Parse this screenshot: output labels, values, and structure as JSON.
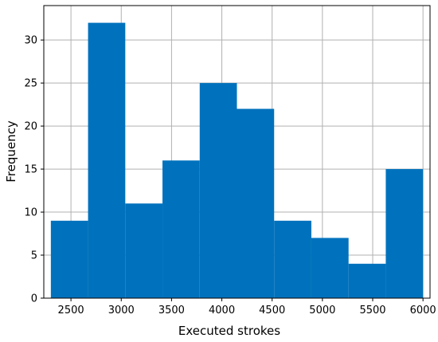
{
  "chart_data": {
    "type": "bar",
    "xlabel": "Executed strokes",
    "ylabel": "Frequency",
    "xlim": [
      2230,
      6070
    ],
    "ylim": [
      0,
      34
    ],
    "grid": true,
    "bar_color": "#0072bd",
    "x_ticks": [
      2500,
      3000,
      3500,
      4000,
      4500,
      5000,
      5500,
      6000
    ],
    "y_ticks": [
      0,
      5,
      10,
      15,
      20,
      25,
      30
    ],
    "bins": [
      {
        "start": 2300,
        "end": 2670,
        "value": 9
      },
      {
        "start": 2670,
        "end": 3040,
        "value": 32
      },
      {
        "start": 3040,
        "end": 3410,
        "value": 11
      },
      {
        "start": 3410,
        "end": 3780,
        "value": 16
      },
      {
        "start": 3780,
        "end": 4150,
        "value": 25
      },
      {
        "start": 4150,
        "end": 4520,
        "value": 22
      },
      {
        "start": 4520,
        "end": 4890,
        "value": 9
      },
      {
        "start": 4890,
        "end": 5260,
        "value": 7
      },
      {
        "start": 5260,
        "end": 5630,
        "value": 4
      },
      {
        "start": 5630,
        "end": 6000,
        "value": 15
      }
    ]
  }
}
